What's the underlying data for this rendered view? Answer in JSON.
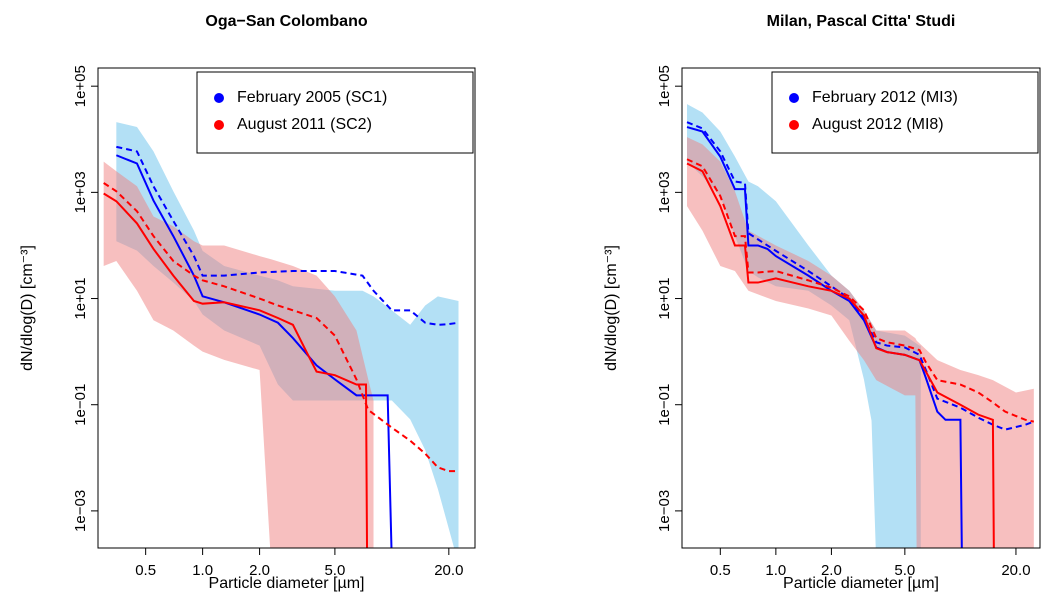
{
  "chart_data": [
    {
      "type": "line",
      "title": "Oga−San Colombano",
      "x_label": "Particle diameter [µm]",
      "y_label": "dN/dlog(D) [cm⁻³]",
      "log_x": true,
      "log_y": true,
      "legend": "topright",
      "xlim": [
        0.28,
        27.5
      ],
      "ylim": [
        0.0002,
        220000
      ],
      "xticks": [
        0.5,
        {
          "value": 1.0,
          "label": "1.0"
        },
        {
          "value": 2.0,
          "label": "2.0"
        },
        {
          "value": 5.0,
          "label": "5.0"
        },
        {
          "value": 20.0,
          "label": "20.0"
        }
      ],
      "yticks": [
        {
          "value": 0.001,
          "label": "1e−03"
        },
        {
          "value": 0.1,
          "label": "1e−01"
        },
        {
          "value": 10,
          "label": "1e+01"
        },
        {
          "value": 1000,
          "label": "1e+03"
        },
        {
          "value": 100000,
          "label": "1e+05"
        }
      ],
      "series": [
        {
          "name": "February 2005 (SC1)",
          "color": "#0000ff",
          "band_color": "#b3e0f5",
          "band_opacity": 1,
          "x": [
            0.35,
            0.45,
            0.55,
            0.7,
            0.9,
            1.0,
            1.3,
            2.0,
            2.5,
            3.0,
            4.0,
            5.0,
            6.5,
            9.5,
            10
          ],
          "values": [
            5000,
            3500,
            700,
            150,
            27,
            11,
            8.5,
            5,
            3.5,
            1.8,
            0.55,
            0.3,
            0.15,
            0.15,
            0.0001
          ],
          "dashed": {
            "x": [
              0.35,
              0.45,
              0.55,
              0.7,
              0.9,
              1.0,
              1.3,
              2.0,
              3.0,
              5.0,
              7.0,
              8.0,
              10,
              12.5,
              15,
              17.5,
              20,
              22.5
            ],
            "values": [
              7200,
              5900,
              1300,
              290,
              63,
              27,
              27,
              31,
              33,
              33,
              27,
              14,
              6,
              6,
              3.5,
              3.2,
              3.3,
              3.5
            ]
          },
          "band": {
            "x": [
              0.35,
              0.45,
              0.55,
              0.7,
              0.9,
              1.0,
              1.3,
              2.0,
              2.5,
              3.0,
              5.0,
              7.0,
              8.0,
              10,
              12.5,
              15,
              17.5,
              22.5
            ],
            "upper": [
              21000,
              17000,
              5900,
              1050,
              190,
              79,
              41,
              27,
              22,
              17,
              14,
              14,
              11,
              6,
              3.2,
              7.4,
              11,
              9
            ],
            "lower": [
              120,
              80,
              41,
              20,
              9,
              5,
              2.5,
              1.3,
              0.24,
              0.12,
              0.12,
              0.12,
              0.12,
              0.12,
              0.053,
              0.014,
              0.0026,
              0.0001
            ]
          }
        },
        {
          "name": "August 2011 (SC2)",
          "color": "#ff0000",
          "band_color": "#f08080",
          "band_opacity": 0.5,
          "x": [
            0.3,
            0.35,
            0.45,
            0.55,
            0.7,
            0.9,
            1.0,
            1.3,
            2.0,
            2.5,
            3.0,
            3.5,
            4.0,
            5.0,
            6.5,
            7.3,
            7.4
          ],
          "values": [
            950,
            680,
            260,
            86,
            27,
            9,
            8,
            8.5,
            6,
            4.3,
            3.2,
            1.07,
            0.42,
            0.36,
            0.24,
            0.24,
            0.0001
          ],
          "dashed": {
            "x": [
              0.3,
              0.35,
              0.45,
              0.55,
              0.7,
              0.9,
              1.0,
              1.3,
              2.0,
              2.5,
              3.0,
              4.0,
              5.0,
              6.5,
              7.5,
              10,
              12.5,
              15,
              17.5,
              20,
              22.5
            ],
            "values": [
              1500,
              1050,
              440,
              150,
              51,
              27,
              22,
              17,
              10,
              7.4,
              6,
              4.3,
              2,
              0.3,
              0.08,
              0.037,
              0.021,
              0.012,
              0.0066,
              0.0056,
              0.0056
            ]
          },
          "band": {
            "x": [
              0.3,
              0.35,
              0.45,
              0.55,
              0.7,
              0.9,
              1.0,
              1.3,
              2.0,
              2.3,
              3.0,
              4.0,
              5.0,
              6.5,
              7.5,
              8.0
            ],
            "upper": [
              3800,
              2500,
              1300,
              350,
              230,
              120,
              100,
              100,
              63,
              55,
              41,
              27,
              11,
              2.5,
              0.3,
              0.12
            ],
            "lower": [
              41,
              51,
              14,
              3.9,
              2.5,
              1.3,
              1.0,
              0.7,
              0.45,
              0.0001,
              0.0001,
              0.0001,
              0.0001,
              0.0001,
              0.0001,
              0.0001
            ]
          }
        }
      ]
    },
    {
      "type": "line",
      "title": "Milan, Pascal Citta' Studi",
      "x_label": "Particle diameter [µm]",
      "y_label": "dN/dlog(D) [cm⁻³]",
      "log_x": true,
      "log_y": true,
      "legend": "topright",
      "xlim": [
        0.31,
        27
      ],
      "ylim": [
        0.0002,
        220000
      ],
      "xticks": [
        0.5,
        {
          "value": 1.0,
          "label": "1.0"
        },
        {
          "value": 2.0,
          "label": "2.0"
        },
        {
          "value": 5.0,
          "label": "5.0"
        },
        {
          "value": 20.0,
          "label": "20.0"
        }
      ],
      "yticks": [
        {
          "value": 0.001,
          "label": "1e−03"
        },
        {
          "value": 0.1,
          "label": "1e−01"
        },
        {
          "value": 10,
          "label": "1e+01"
        },
        {
          "value": 1000,
          "label": "1e+03"
        },
        {
          "value": 100000,
          "label": "1e+05"
        }
      ],
      "series": [
        {
          "name": "February 2012 (MI3)",
          "color": "#0000ff",
          "band_color": "#b3e0f5",
          "band_opacity": 1,
          "x": [
            0.33,
            0.4,
            0.5,
            0.6,
            0.68,
            0.71,
            0.8,
            0.9,
            1.0,
            1.5,
            2.0,
            2.5,
            3.0,
            3.5,
            4.0,
            5.0,
            6.0,
            6.5,
            7.5,
            8.3,
            10,
            10.2
          ],
          "values": [
            17000,
            14000,
            4700,
            1150,
            1150,
            100,
            100,
            86,
            63,
            27,
            14,
            9,
            3.9,
            1.2,
            0.98,
            0.87,
            0.69,
            0.32,
            0.074,
            0.052,
            0.052,
            0.0001
          ],
          "dashed": {
            "x": [
              0.33,
              0.4,
              0.5,
              0.6,
              0.68,
              0.71,
              0.8,
              1.0,
              1.5,
              2.0,
              2.5,
              3.0,
              3.5,
              4.0,
              5.0,
              6.0,
              6.5,
              7.5,
              8.5,
              10,
              12.5,
              15,
              17.5,
              22.5,
              25
            ],
            "values": [
              21000,
              16000,
              5900,
              1600,
              1500,
              170,
              130,
              79,
              33,
              17,
              10,
              4.3,
              1.5,
              1.3,
              1.2,
              0.87,
              0.45,
              0.13,
              0.11,
              0.088,
              0.057,
              0.042,
              0.034,
              0.042,
              0.048
            ]
          },
          "band": {
            "x": [
              0.33,
              0.4,
              0.5,
              0.6,
              0.71,
              0.8,
              1.0,
              1.5,
              2.0,
              2.5,
              3.0,
              3.3,
              3.5,
              5.0,
              6.0,
              6.1
            ],
            "upper": [
              46000,
              32000,
              14000,
              4700,
              1600,
              1300,
              680,
              100,
              27,
              14,
              6,
              3.5,
              2.5,
              2,
              1.3,
              1.3
            ],
            "lower": [
              3800,
              2000,
              850,
              150,
              33,
              25,
              17,
              14,
              7.4,
              3.9,
              0.3,
              0.05,
              0.0001,
              0.0001,
              0.0001,
              0.0001
            ]
          }
        },
        {
          "name": "August 2012 (MI8)",
          "color": "#ff0000",
          "band_color": "#f08080",
          "band_opacity": 0.5,
          "x": [
            0.33,
            0.4,
            0.5,
            0.6,
            0.68,
            0.71,
            0.8,
            1.0,
            1.5,
            2.0,
            2.5,
            3.0,
            3.5,
            4.0,
            5.0,
            6.0,
            6.5,
            7.5,
            10,
            12.5,
            15,
            15.2
          ],
          "values": [
            3500,
            2500,
            550,
            100,
            100,
            20,
            20,
            24,
            17,
            14,
            10,
            4.8,
            1.16,
            0.98,
            0.87,
            0.69,
            0.42,
            0.17,
            0.1,
            0.065,
            0.052,
            0.0001
          ],
          "dashed": {
            "x": [
              0.33,
              0.4,
              0.5,
              0.6,
              0.68,
              0.71,
              0.8,
              1.0,
              1.5,
              2.0,
              2.5,
              3.0,
              3.5,
              4.0,
              5.0,
              6.0,
              6.5,
              7.5,
              10,
              12.5,
              15,
              17.5,
              22.5,
              25
            ],
            "values": [
              4200,
              3100,
              850,
              150,
              150,
              31,
              31,
              33,
              22,
              16,
              11,
              6,
              1.8,
              1.5,
              1.3,
              1.07,
              0.63,
              0.29,
              0.24,
              0.17,
              0.11,
              0.074,
              0.052,
              0.048
            ]
          },
          "band": {
            "x": [
              0.33,
              0.4,
              0.5,
              0.6,
              0.71,
              1.0,
              1.5,
              2.0,
              2.5,
              3.0,
              3.5,
              5.0,
              5.7,
              5.8,
              7.5,
              10,
              12.5,
              15,
              20,
              25
            ],
            "upper": [
              11000,
              8000,
              3800,
              1050,
              190,
              100,
              51,
              27,
              14,
              6,
              2.5,
              2.5,
              1.8,
              1.6,
              0.69,
              0.45,
              0.36,
              0.29,
              0.17,
              0.2
            ],
            "lower": [
              550,
              190,
              41,
              33,
              14,
              9,
              6.5,
              4.8,
              1.6,
              0.69,
              0.29,
              0.15,
              0.15,
              0.0001,
              0.0001,
              0.0001,
              0.0001,
              0.0001,
              0.0001,
              0.0001
            ]
          }
        }
      ]
    }
  ]
}
